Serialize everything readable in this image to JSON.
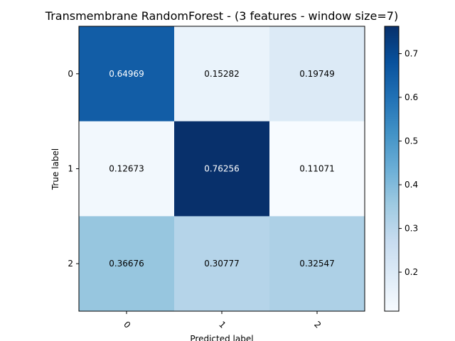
{
  "chart_data": {
    "type": "heatmap",
    "title": "Transmembrane RandomForest - (3 features - window size=7)",
    "xlabel": "Predicted label",
    "ylabel": "True label",
    "x_categories": [
      "0",
      "1",
      "2"
    ],
    "y_categories": [
      "0",
      "1",
      "2"
    ],
    "values": [
      [
        0.64969,
        0.15282,
        0.19749
      ],
      [
        0.12673,
        0.76256,
        0.11071
      ],
      [
        0.36676,
        0.30777,
        0.32547
      ]
    ],
    "value_labels": [
      [
        "0.64969",
        "0.15282",
        "0.19749"
      ],
      [
        "0.12673",
        "0.76256",
        "0.11071"
      ],
      [
        "0.36676",
        "0.30777",
        "0.32547"
      ]
    ],
    "colorbar": {
      "colormap": "Blues",
      "vmin": 0.11071,
      "vmax": 0.76256,
      "ticks": [
        0.2,
        0.3,
        0.4,
        0.5,
        0.6,
        0.7
      ],
      "tick_labels": [
        "0.2",
        "0.3",
        "0.4",
        "0.5",
        "0.6",
        "0.7"
      ]
    },
    "grid": false,
    "x_tick_rotation": 45
  }
}
